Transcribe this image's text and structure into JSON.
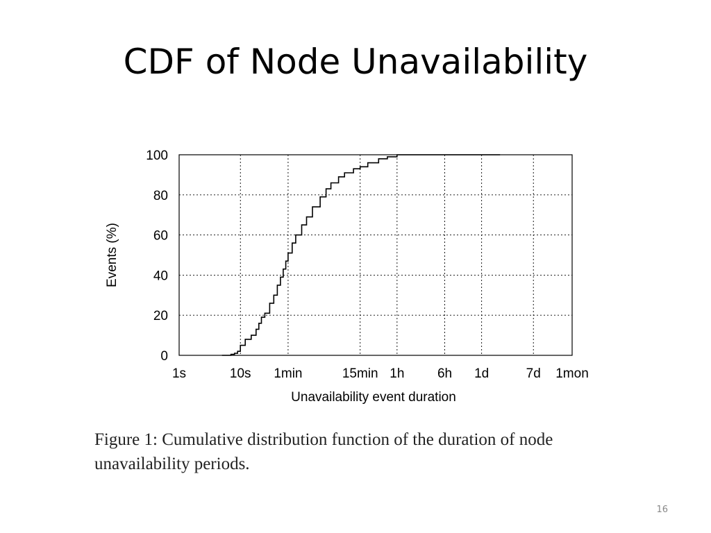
{
  "slide": {
    "title": "CDF of Node Unavailability",
    "caption": "Figure 1:  Cumulative distribution function of the duration of node unavailability periods.",
    "number": "16"
  },
  "chart_data": {
    "type": "line",
    "title": "",
    "xlabel": "Unavailability event duration",
    "ylabel": "Events (%)",
    "x_scale": "log",
    "x_unit": "seconds",
    "xlim": [
      1,
      2592000
    ],
    "ylim": [
      0,
      100
    ],
    "grid": true,
    "line_style": "step",
    "x_ticks": [
      {
        "value": 1,
        "label": "1s"
      },
      {
        "value": 10,
        "label": "10s"
      },
      {
        "value": 60,
        "label": "1min"
      },
      {
        "value": 900,
        "label": "15min"
      },
      {
        "value": 3600,
        "label": "1h"
      },
      {
        "value": 21600,
        "label": "6h"
      },
      {
        "value": 86400,
        "label": "1d"
      },
      {
        "value": 604800,
        "label": "7d"
      },
      {
        "value": 2592000,
        "label": "1mon"
      }
    ],
    "y_ticks": [
      0,
      20,
      40,
      60,
      80,
      100
    ],
    "series": [
      {
        "name": "",
        "color": "#000000",
        "points": [
          [
            5,
            0
          ],
          [
            7,
            0.5
          ],
          [
            8,
            1
          ],
          [
            9,
            2
          ],
          [
            10,
            5
          ],
          [
            12,
            8
          ],
          [
            15,
            10
          ],
          [
            18,
            13
          ],
          [
            20,
            16
          ],
          [
            22,
            19
          ],
          [
            25,
            21
          ],
          [
            30,
            26
          ],
          [
            35,
            30
          ],
          [
            40,
            35
          ],
          [
            45,
            39
          ],
          [
            50,
            43
          ],
          [
            55,
            47
          ],
          [
            60,
            51
          ],
          [
            70,
            56
          ],
          [
            80,
            60
          ],
          [
            100,
            65
          ],
          [
            120,
            69
          ],
          [
            150,
            74
          ],
          [
            200,
            79
          ],
          [
            250,
            83
          ],
          [
            300,
            86
          ],
          [
            400,
            89
          ],
          [
            500,
            91
          ],
          [
            700,
            93
          ],
          [
            900,
            94
          ],
          [
            1200,
            96
          ],
          [
            1800,
            98
          ],
          [
            2500,
            99
          ],
          [
            3600,
            100
          ],
          [
            172800,
            100
          ]
        ]
      }
    ]
  }
}
